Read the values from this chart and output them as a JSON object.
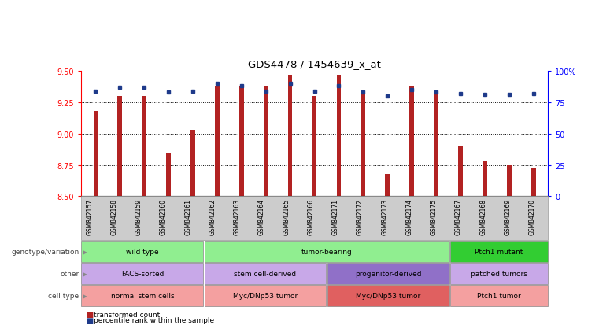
{
  "title": "GDS4478 / 1454639_x_at",
  "samples": [
    "GSM842157",
    "GSM842158",
    "GSM842159",
    "GSM842160",
    "GSM842161",
    "GSM842162",
    "GSM842163",
    "GSM842164",
    "GSM842165",
    "GSM842166",
    "GSM842171",
    "GSM842172",
    "GSM842173",
    "GSM842174",
    "GSM842175",
    "GSM842167",
    "GSM842168",
    "GSM842169",
    "GSM842170"
  ],
  "bar_values": [
    9.18,
    9.3,
    9.3,
    8.85,
    9.03,
    9.38,
    9.38,
    9.38,
    9.47,
    9.3,
    9.47,
    9.33,
    8.68,
    9.38,
    9.33,
    8.9,
    8.78,
    8.75,
    8.72
  ],
  "percentile_values": [
    84,
    87,
    87,
    83,
    84,
    90,
    88,
    84,
    90,
    84,
    88,
    83,
    80,
    85,
    83,
    82,
    81,
    81,
    82
  ],
  "y_min": 8.5,
  "y_max": 9.5,
  "y_ticks": [
    8.5,
    8.75,
    9.0,
    9.25,
    9.5
  ],
  "right_y_ticks": [
    0,
    25,
    50,
    75,
    100
  ],
  "bar_color": "#B22222",
  "dot_color": "#1E3A8A",
  "groups": {
    "genotype": [
      {
        "label": "wild type",
        "start": 0,
        "end": 5,
        "color": "#90EE90"
      },
      {
        "label": "tumor-bearing",
        "start": 5,
        "end": 15,
        "color": "#90EE90"
      },
      {
        "label": "Ptch1 mutant",
        "start": 15,
        "end": 19,
        "color": "#32CD32"
      }
    ],
    "other": [
      {
        "label": "FACS-sorted",
        "start": 0,
        "end": 5,
        "color": "#C8A8E8"
      },
      {
        "label": "stem cell-derived",
        "start": 5,
        "end": 10,
        "color": "#C8A8E8"
      },
      {
        "label": "progenitor-derived",
        "start": 10,
        "end": 15,
        "color": "#9070C8"
      },
      {
        "label": "patched tumors",
        "start": 15,
        "end": 19,
        "color": "#C8A8E8"
      }
    ],
    "cell_type": [
      {
        "label": "normal stem cells",
        "start": 0,
        "end": 5,
        "color": "#F4A0A0"
      },
      {
        "label": "Myc/DNp53 tumor",
        "start": 5,
        "end": 10,
        "color": "#F4A0A0"
      },
      {
        "label": "Myc/DNp53 tumor",
        "start": 10,
        "end": 15,
        "color": "#E06060"
      },
      {
        "label": "Ptch1 tumor",
        "start": 15,
        "end": 19,
        "color": "#F4A0A0"
      }
    ]
  },
  "row_labels": [
    "genotype/variation",
    "other",
    "cell type"
  ],
  "legend_items": [
    {
      "label": "transformed count",
      "color": "#B22222"
    },
    {
      "label": "percentile rank within the sample",
      "color": "#1E3A8A"
    }
  ]
}
